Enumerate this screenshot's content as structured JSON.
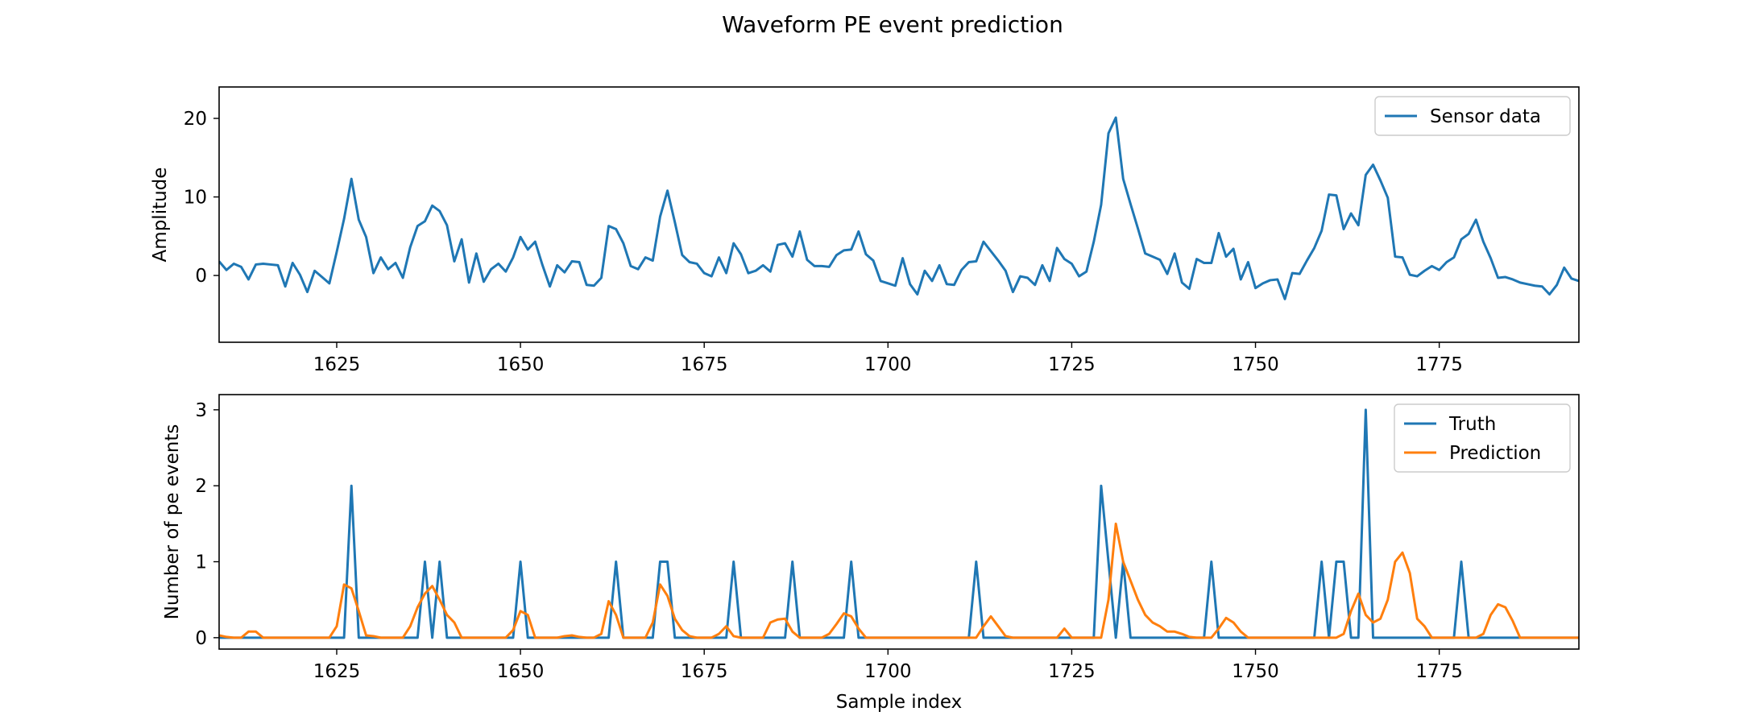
{
  "figure": {
    "suptitle": "Waveform PE event prediction"
  },
  "chart_data": [
    {
      "type": "line",
      "ylabel": "Amplitude",
      "xlabel": "",
      "xlim": [
        1609,
        1794
      ],
      "ylim": [
        -8.5,
        24
      ],
      "xticks": [
        1625,
        1650,
        1675,
        1700,
        1725,
        1750,
        1775
      ],
      "yticks": [
        0,
        10,
        20
      ],
      "legend_position": "top-right",
      "x_start": 1609,
      "series": [
        {
          "name": "Sensor data",
          "color": "#1f77b4",
          "values": [
            1.8,
            0.7,
            1.5,
            1.1,
            -0.5,
            1.4,
            1.5,
            1.4,
            1.3,
            -1.4,
            1.6,
            0.1,
            -2.1,
            0.6,
            -0.2,
            -1.0,
            3.0,
            7.2,
            12.3,
            7.1,
            4.9,
            0.3,
            2.3,
            0.8,
            1.6,
            -0.3,
            3.6,
            6.3,
            6.9,
            8.9,
            8.2,
            6.4,
            1.8,
            4.6,
            -0.9,
            2.8,
            -0.8,
            0.8,
            1.5,
            0.5,
            2.3,
            4.9,
            3.3,
            4.3,
            1.3,
            -1.4,
            1.3,
            0.4,
            1.8,
            1.7,
            -1.2,
            -1.3,
            -0.3,
            6.3,
            5.9,
            4.1,
            1.2,
            0.8,
            2.3,
            1.9,
            7.5,
            10.8,
            6.8,
            2.6,
            1.7,
            1.5,
            0.3,
            -0.1,
            2.3,
            0.3,
            4.1,
            2.7,
            0.3,
            0.6,
            1.3,
            0.5,
            3.9,
            4.1,
            2.4,
            5.6,
            2.0,
            1.2,
            1.2,
            1.1,
            2.6,
            3.2,
            3.3,
            5.6,
            2.7,
            1.9,
            -0.7,
            -1.0,
            -1.3,
            2.2,
            -1.1,
            -2.4,
            0.6,
            -0.7,
            1.3,
            -1.1,
            -1.2,
            0.7,
            1.7,
            1.8,
            4.3,
            3.1,
            1.9,
            0.6,
            -2.1,
            -0.1,
            -0.3,
            -1.2,
            1.3,
            -0.7,
            3.5,
            2.1,
            1.5,
            -0.1,
            0.5,
            4.3,
            9.0,
            18.1,
            20.1,
            12.3,
            9.1,
            6.0,
            2.8,
            2.4,
            2.0,
            0.2,
            2.8,
            -0.9,
            -1.7,
            2.1,
            1.6,
            1.6,
            5.4,
            2.4,
            3.4,
            -0.5,
            1.7,
            -1.6,
            -1.0,
            -0.6,
            -0.5,
            -3.0,
            0.3,
            0.2,
            1.9,
            3.5,
            5.7,
            10.3,
            10.2,
            5.9,
            7.9,
            6.4,
            12.8,
            14.1,
            12.1,
            9.9,
            2.4,
            2.3,
            0.1,
            -0.1,
            0.6,
            1.2,
            0.7,
            1.7,
            2.3,
            4.6,
            5.3,
            7.1,
            4.3,
            2.2,
            -0.3,
            -0.2,
            -0.5,
            -0.9,
            -1.1,
            -1.3,
            -1.4,
            -2.4,
            -1.2,
            1.0,
            -0.4,
            -0.7,
            0.2
          ]
        }
      ]
    },
    {
      "type": "line",
      "ylabel": "Number of pe events",
      "xlabel": "Sample index",
      "xlim": [
        1609,
        1794
      ],
      "ylim": [
        -0.15,
        3.2
      ],
      "xticks": [
        1625,
        1650,
        1675,
        1700,
        1725,
        1750,
        1775
      ],
      "yticks": [
        0,
        1,
        2,
        3
      ],
      "legend_position": "top-right",
      "x_start": 1609,
      "series": [
        {
          "name": "Truth",
          "color": "#1f77b4",
          "values": [
            0,
            0,
            0,
            0,
            0,
            0,
            0,
            0,
            0,
            0,
            0,
            0,
            0,
            0,
            0,
            0,
            0,
            0,
            2,
            0,
            0,
            0,
            0,
            0,
            0,
            0,
            0,
            0,
            1,
            0,
            1,
            0,
            0,
            0,
            0,
            0,
            0,
            0,
            0,
            0,
            0,
            1,
            0,
            0,
            0,
            0,
            0,
            0,
            0,
            0,
            0,
            0,
            0,
            0,
            1,
            0,
            0,
            0,
            0,
            0,
            1,
            1,
            0,
            0,
            0,
            0,
            0,
            0,
            0,
            0,
            1,
            0,
            0,
            0,
            0,
            0,
            0,
            0,
            1,
            0,
            0,
            0,
            0,
            0,
            0,
            0,
            1,
            0,
            0,
            0,
            0,
            0,
            0,
            0,
            0,
            0,
            0,
            0,
            0,
            0,
            0,
            0,
            0,
            1,
            0,
            0,
            0,
            0,
            0,
            0,
            0,
            0,
            0,
            0,
            0,
            0,
            0,
            0,
            0,
            0,
            2,
            1,
            0,
            1,
            0,
            0,
            0,
            0,
            0,
            0,
            0,
            0,
            0,
            0,
            0,
            1,
            0,
            0,
            0,
            0,
            0,
            0,
            0,
            0,
            0,
            0,
            0,
            0,
            0,
            0,
            1,
            0,
            1,
            1,
            0,
            0,
            3,
            0,
            0,
            0,
            0,
            0,
            0,
            0,
            0,
            0,
            0,
            0,
            0,
            1,
            0,
            0,
            0,
            0,
            0,
            0,
            0,
            0,
            0,
            0,
            0,
            0,
            0,
            0,
            0,
            0
          ]
        },
        {
          "name": "Prediction",
          "color": "#ff7f0e",
          "values": [
            0.03,
            0.01,
            0,
            0,
            0.08,
            0.08,
            0,
            0,
            0,
            0,
            0,
            0,
            0,
            0,
            0,
            0,
            0.15,
            0.7,
            0.65,
            0.35,
            0.03,
            0.02,
            0,
            0,
            0,
            0,
            0.15,
            0.4,
            0.58,
            0.68,
            0.5,
            0.3,
            0.2,
            0,
            0,
            0,
            0,
            0,
            0,
            0,
            0.1,
            0.35,
            0.3,
            0,
            0,
            0,
            0,
            0.02,
            0.03,
            0.01,
            0,
            0,
            0.05,
            0.48,
            0.3,
            0,
            0,
            0,
            0,
            0.2,
            0.7,
            0.55,
            0.25,
            0.1,
            0.02,
            0,
            0,
            0,
            0.05,
            0.15,
            0.02,
            0,
            0,
            0,
            0,
            0.2,
            0.24,
            0.25,
            0.08,
            0,
            0,
            0,
            0,
            0.05,
            0.18,
            0.32,
            0.28,
            0.12,
            0,
            0,
            0,
            0,
            0,
            0,
            0,
            0,
            0,
            0,
            0,
            0,
            0,
            0,
            0,
            0,
            0.15,
            0.28,
            0.15,
            0.02,
            0,
            0,
            0,
            0,
            0,
            0,
            0,
            0.12,
            0,
            0,
            0,
            0,
            0,
            0.5,
            1.5,
            1.0,
            0.75,
            0.5,
            0.3,
            0.2,
            0.15,
            0.08,
            0.08,
            0.05,
            0.01,
            0,
            0,
            0,
            0.12,
            0.26,
            0.2,
            0.08,
            0,
            0,
            0,
            0,
            0,
            0,
            0,
            0,
            0,
            0,
            0,
            0,
            0,
            0.05,
            0.35,
            0.58,
            0.3,
            0.2,
            0.25,
            0.5,
            1.0,
            1.12,
            0.85,
            0.25,
            0.15,
            0,
            0,
            0,
            0,
            0,
            0,
            0,
            0.05,
            0.3,
            0.44,
            0.4,
            0.22,
            0,
            0,
            0,
            0,
            0,
            0,
            0,
            0,
            0,
            0,
            0,
            0,
            0,
            0,
            0
          ]
        }
      ]
    }
  ]
}
